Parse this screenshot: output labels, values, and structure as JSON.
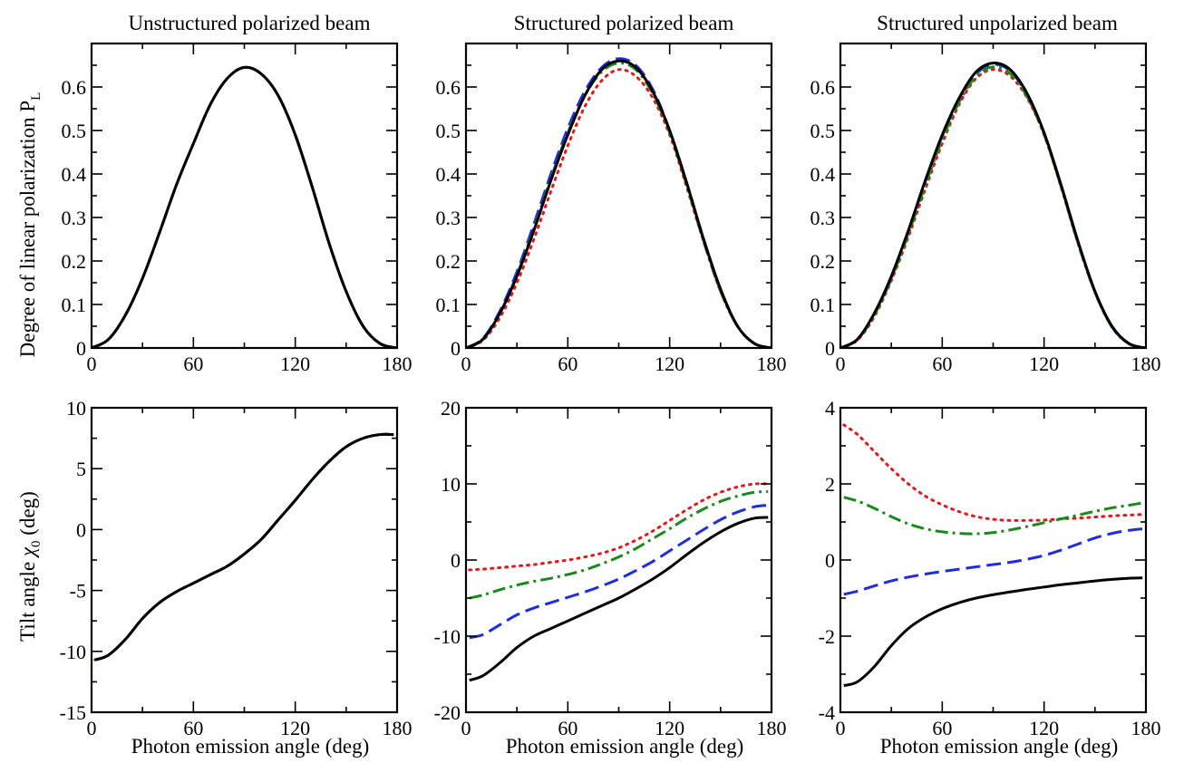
{
  "figure": {
    "col_titles": [
      "Unstructured polarized beam",
      "Structured polarized beam",
      "Structured unpolarized beam"
    ],
    "ylabel_top": "Degree of linear polarization P",
    "ylabel_top_sub": "L",
    "ylabel_bottom": "Tilt angle ",
    "ylabel_bottom_symbol": "χ",
    "ylabel_bottom_sub": "0",
    "ylabel_bottom_unit": " (deg)",
    "xlabel": "Photon emission angle (deg)"
  },
  "colors": {
    "black": "#000000",
    "red": "#e8161b",
    "blue": "#1f2de0",
    "green": "#1a8a1a"
  },
  "chart_data": [
    {
      "type": "line",
      "title": "Unstructured polarized beam",
      "xlabel": "",
      "ylabel": "Degree of linear polarization P_L",
      "xlim": [
        0,
        180
      ],
      "ylim": [
        0,
        0.7
      ],
      "xticks": [
        0,
        60,
        120,
        180
      ],
      "yticks": [
        0,
        0.1,
        0.2,
        0.3,
        0.4,
        0.5,
        0.6
      ],
      "x": [
        0,
        10,
        20,
        30,
        40,
        50,
        60,
        70,
        80,
        90,
        100,
        110,
        120,
        130,
        140,
        150,
        160,
        170,
        180
      ],
      "series": [
        {
          "style": "solid",
          "color": "#000000",
          "values": [
            0,
            0.02,
            0.076,
            0.16,
            0.265,
            0.375,
            0.47,
            0.56,
            0.62,
            0.645,
            0.63,
            0.58,
            0.49,
            0.37,
            0.24,
            0.13,
            0.05,
            0.01,
            0
          ]
        },
        {
          "style": "dotted",
          "color": "#e8161b",
          "values": [
            0,
            0.02,
            0.076,
            0.16,
            0.265,
            0.375,
            0.47,
            0.56,
            0.62,
            0.645,
            0.63,
            0.58,
            0.49,
            0.37,
            0.24,
            0.13,
            0.05,
            0.01,
            0
          ]
        },
        {
          "style": "dashed",
          "color": "#1f2de0",
          "values": [
            0,
            0.02,
            0.076,
            0.16,
            0.265,
            0.375,
            0.47,
            0.56,
            0.62,
            0.645,
            0.63,
            0.58,
            0.49,
            0.37,
            0.24,
            0.13,
            0.05,
            0.01,
            0
          ]
        },
        {
          "style": "dashdot",
          "color": "#1a8a1a",
          "values": [
            0,
            0.02,
            0.076,
            0.16,
            0.265,
            0.375,
            0.47,
            0.56,
            0.62,
            0.645,
            0.63,
            0.58,
            0.49,
            0.37,
            0.24,
            0.13,
            0.05,
            0.01,
            0
          ]
        }
      ]
    },
    {
      "type": "line",
      "title": "Structured polarized beam",
      "xlabel": "",
      "ylabel": "",
      "xlim": [
        0,
        180
      ],
      "ylim": [
        0,
        0.7
      ],
      "xticks": [
        0,
        60,
        120,
        180
      ],
      "yticks": [
        0,
        0.1,
        0.2,
        0.3,
        0.4,
        0.5,
        0.6
      ],
      "x": [
        0,
        10,
        20,
        30,
        40,
        50,
        60,
        70,
        80,
        90,
        100,
        110,
        120,
        130,
        140,
        150,
        160,
        170,
        180
      ],
      "series": [
        {
          "style": "solid",
          "color": "#000000",
          "values": [
            0,
            0.02,
            0.08,
            0.165,
            0.27,
            0.385,
            0.49,
            0.58,
            0.64,
            0.66,
            0.645,
            0.59,
            0.5,
            0.38,
            0.25,
            0.135,
            0.05,
            0.01,
            0
          ]
        },
        {
          "style": "dotted",
          "color": "#e8161b",
          "values": [
            0,
            0.018,
            0.07,
            0.15,
            0.25,
            0.36,
            0.465,
            0.555,
            0.615,
            0.64,
            0.625,
            0.575,
            0.49,
            0.37,
            0.245,
            0.13,
            0.05,
            0.01,
            0
          ]
        },
        {
          "style": "dashed",
          "color": "#1f2de0",
          "values": [
            0,
            0.022,
            0.085,
            0.175,
            0.285,
            0.4,
            0.505,
            0.59,
            0.645,
            0.665,
            0.65,
            0.595,
            0.5,
            0.38,
            0.25,
            0.135,
            0.05,
            0.01,
            0
          ]
        },
        {
          "style": "dashdot",
          "color": "#1a8a1a",
          "values": [
            0,
            0.021,
            0.08,
            0.168,
            0.275,
            0.39,
            0.495,
            0.58,
            0.635,
            0.655,
            0.64,
            0.585,
            0.495,
            0.375,
            0.245,
            0.13,
            0.05,
            0.01,
            0
          ]
        }
      ]
    },
    {
      "type": "line",
      "title": "Structured unpolarized beam",
      "xlabel": "",
      "ylabel": "",
      "xlim": [
        0,
        180
      ],
      "ylim": [
        0,
        0.7
      ],
      "xticks": [
        0,
        60,
        120,
        180
      ],
      "yticks": [
        0,
        0.1,
        0.2,
        0.3,
        0.4,
        0.5,
        0.6
      ],
      "x": [
        0,
        10,
        20,
        30,
        40,
        50,
        60,
        70,
        80,
        90,
        100,
        110,
        120,
        130,
        140,
        150,
        160,
        170,
        180
      ],
      "series": [
        {
          "style": "solid",
          "color": "#000000",
          "values": [
            0,
            0.02,
            0.08,
            0.165,
            0.27,
            0.385,
            0.49,
            0.575,
            0.635,
            0.655,
            0.64,
            0.585,
            0.495,
            0.375,
            0.245,
            0.13,
            0.05,
            0.01,
            0
          ]
        },
        {
          "style": "dotted",
          "color": "#e8161b",
          "values": [
            0,
            0.018,
            0.072,
            0.155,
            0.255,
            0.365,
            0.47,
            0.56,
            0.62,
            0.64,
            0.625,
            0.575,
            0.49,
            0.37,
            0.24,
            0.128,
            0.048,
            0.01,
            0
          ]
        },
        {
          "style": "dashed",
          "color": "#1f2de0",
          "values": [
            0,
            0.02,
            0.079,
            0.163,
            0.268,
            0.382,
            0.487,
            0.572,
            0.63,
            0.652,
            0.637,
            0.582,
            0.493,
            0.373,
            0.243,
            0.129,
            0.049,
            0.01,
            0
          ]
        },
        {
          "style": "dashdot",
          "color": "#1a8a1a",
          "values": [
            0,
            0.019,
            0.076,
            0.159,
            0.262,
            0.374,
            0.479,
            0.566,
            0.625,
            0.646,
            0.631,
            0.578,
            0.491,
            0.371,
            0.241,
            0.128,
            0.048,
            0.01,
            0
          ]
        }
      ]
    },
    {
      "type": "line",
      "title": "",
      "xlabel": "Photon emission angle (deg)",
      "ylabel": "Tilt angle χ0 (deg)",
      "xlim": [
        0,
        180
      ],
      "ylim": [
        -15,
        10
      ],
      "xticks": [
        0,
        60,
        120,
        180
      ],
      "yticks": [
        -15,
        -10,
        -5,
        0,
        5,
        10
      ],
      "ytick_labels": [
        "-15",
        "-10",
        "-5",
        "0",
        "5",
        "10"
      ],
      "x": [
        2,
        10,
        20,
        30,
        40,
        50,
        60,
        70,
        80,
        90,
        100,
        110,
        120,
        130,
        140,
        150,
        160,
        170,
        178
      ],
      "series": [
        {
          "style": "solid",
          "color": "#000000",
          "values": [
            -10.7,
            -10.3,
            -9.0,
            -7.3,
            -6.0,
            -5.1,
            -4.4,
            -3.7,
            -3.0,
            -2.0,
            -0.8,
            0.8,
            2.4,
            4.1,
            5.6,
            6.8,
            7.5,
            7.8,
            7.8
          ]
        },
        {
          "style": "dotted",
          "color": "#e8161b",
          "values": [
            -10.7,
            -10.3,
            -9.0,
            -7.3,
            -6.0,
            -5.1,
            -4.4,
            -3.7,
            -3.0,
            -2.0,
            -0.8,
            0.8,
            2.4,
            4.1,
            5.6,
            6.8,
            7.5,
            7.8,
            7.8
          ]
        },
        {
          "style": "dashed",
          "color": "#1f2de0",
          "values": [
            -10.7,
            -10.3,
            -9.0,
            -7.3,
            -6.0,
            -5.1,
            -4.4,
            -3.7,
            -3.0,
            -2.0,
            -0.8,
            0.8,
            2.4,
            4.1,
            5.6,
            6.8,
            7.5,
            7.8,
            7.8
          ]
        },
        {
          "style": "dashdot",
          "color": "#1a8a1a",
          "values": [
            -10.7,
            -10.3,
            -9.0,
            -7.3,
            -6.0,
            -5.1,
            -4.4,
            -3.7,
            -3.0,
            -2.0,
            -0.8,
            0.8,
            2.4,
            4.1,
            5.6,
            6.8,
            7.5,
            7.8,
            7.8
          ]
        }
      ]
    },
    {
      "type": "line",
      "title": "",
      "xlabel": "Photon emission angle (deg)",
      "ylabel": "",
      "xlim": [
        0,
        180
      ],
      "ylim": [
        -20,
        20
      ],
      "xticks": [
        0,
        60,
        120,
        180
      ],
      "yticks": [
        -20,
        -10,
        0,
        10,
        20
      ],
      "ytick_labels": [
        "-20",
        "-10",
        "0",
        "10",
        "20"
      ],
      "x": [
        2,
        10,
        20,
        30,
        40,
        50,
        60,
        70,
        80,
        90,
        100,
        110,
        120,
        130,
        140,
        150,
        160,
        170,
        178
      ],
      "series": [
        {
          "style": "solid",
          "color": "#000000",
          "values": [
            -15.8,
            -15.2,
            -13.5,
            -11.5,
            -10.0,
            -9.0,
            -8.0,
            -7.0,
            -6.0,
            -5.0,
            -3.8,
            -2.5,
            -1.0,
            0.7,
            2.3,
            3.7,
            4.8,
            5.5,
            5.6
          ]
        },
        {
          "style": "dotted",
          "color": "#e8161b",
          "values": [
            -1.3,
            -1.2,
            -1.0,
            -0.8,
            -0.6,
            -0.3,
            0.0,
            0.4,
            0.9,
            1.6,
            2.6,
            3.8,
            5.2,
            6.6,
            7.9,
            8.9,
            9.6,
            10.0,
            10.0
          ]
        },
        {
          "style": "dashed",
          "color": "#1f2de0",
          "values": [
            -10.2,
            -9.8,
            -8.5,
            -7.2,
            -6.3,
            -5.6,
            -4.9,
            -4.2,
            -3.4,
            -2.5,
            -1.4,
            -0.2,
            1.2,
            2.6,
            4.0,
            5.3,
            6.3,
            7.0,
            7.2
          ]
        },
        {
          "style": "dashdot",
          "color": "#1a8a1a",
          "values": [
            -5.0,
            -4.6,
            -3.9,
            -3.3,
            -2.8,
            -2.4,
            -1.9,
            -1.3,
            -0.5,
            0.4,
            1.5,
            2.8,
            4.1,
            5.5,
            6.7,
            7.7,
            8.4,
            8.9,
            9.0
          ]
        }
      ]
    },
    {
      "type": "line",
      "title": "",
      "xlabel": "Photon emission angle (deg)",
      "ylabel": "",
      "xlim": [
        0,
        180
      ],
      "ylim": [
        -4,
        4
      ],
      "xticks": [
        0,
        60,
        120,
        180
      ],
      "yticks": [
        -4,
        -2,
        0,
        2,
        4
      ],
      "ytick_labels": [
        "-4",
        "-2",
        "0",
        "2",
        "4"
      ],
      "x": [
        2,
        10,
        20,
        30,
        40,
        50,
        60,
        70,
        80,
        90,
        100,
        110,
        120,
        130,
        140,
        150,
        160,
        170,
        178
      ],
      "series": [
        {
          "style": "solid",
          "color": "#000000",
          "values": [
            -3.3,
            -3.2,
            -2.8,
            -2.25,
            -1.8,
            -1.5,
            -1.28,
            -1.12,
            -1.0,
            -0.91,
            -0.84,
            -0.77,
            -0.71,
            -0.65,
            -0.6,
            -0.55,
            -0.51,
            -0.48,
            -0.47
          ]
        },
        {
          "style": "dotted",
          "color": "#e8161b",
          "values": [
            3.55,
            3.3,
            2.85,
            2.4,
            2.0,
            1.68,
            1.45,
            1.27,
            1.14,
            1.07,
            1.04,
            1.04,
            1.05,
            1.08,
            1.1,
            1.13,
            1.16,
            1.18,
            1.2
          ]
        },
        {
          "style": "dashed",
          "color": "#1f2de0",
          "values": [
            -0.9,
            -0.82,
            -0.68,
            -0.55,
            -0.45,
            -0.37,
            -0.3,
            -0.24,
            -0.18,
            -0.12,
            -0.06,
            0.02,
            0.12,
            0.26,
            0.42,
            0.58,
            0.7,
            0.78,
            0.82
          ]
        },
        {
          "style": "dashdot",
          "color": "#1a8a1a",
          "values": [
            1.65,
            1.55,
            1.36,
            1.14,
            0.95,
            0.82,
            0.74,
            0.7,
            0.69,
            0.72,
            0.79,
            0.88,
            0.98,
            1.08,
            1.18,
            1.28,
            1.37,
            1.44,
            1.5
          ]
        }
      ]
    }
  ]
}
